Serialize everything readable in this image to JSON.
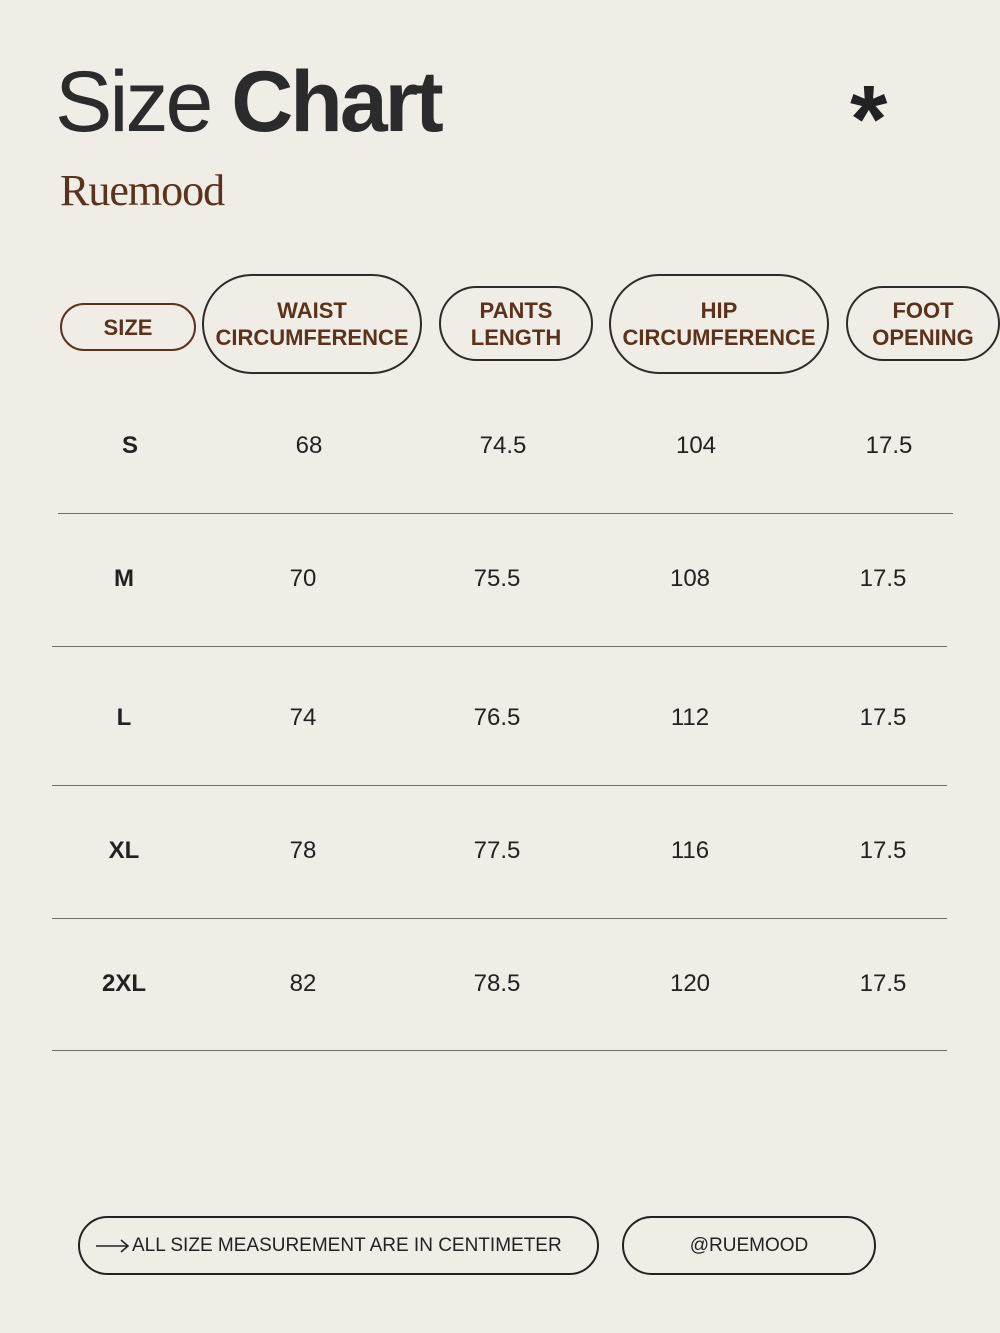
{
  "header": {
    "title_light": "Size",
    "title_bold": "Chart",
    "brand": "Ruemood",
    "decor_icon": "asterisk-icon"
  },
  "table": {
    "columns": [
      "SIZE",
      "WAIST CIRCUMFERENCE",
      "PANTS LENGTH",
      "HIP CIRCUMFERENCE",
      "FOOT OPENING"
    ],
    "rows": [
      [
        "S",
        "68",
        "74.5",
        "104",
        "17.5"
      ],
      [
        "M",
        "70",
        "75.5",
        "108",
        "17.5"
      ],
      [
        "L",
        "74",
        "76.5",
        "112",
        "17.5"
      ],
      [
        "XL",
        "78",
        "77.5",
        "116",
        "17.5"
      ],
      [
        "2XL",
        "82",
        "78.5",
        "120",
        "17.5"
      ]
    ]
  },
  "footer": {
    "note": "ALL SIZE MEASUREMENT ARE IN CENTIMETER",
    "note_icon": "arrow-right-icon",
    "handle": "@RUEMOOD"
  },
  "colors": {
    "background": "#f0ede6",
    "accent_brown": "#5b331c",
    "text": "#222222"
  }
}
